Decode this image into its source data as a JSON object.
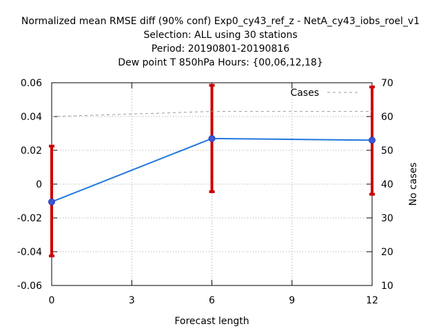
{
  "chart_data": {
    "type": "line",
    "title_lines": [
      "Normalized mean RMSE diff (90% conf) Exp0_cy43_ref_z - NetA_cy43_iobs_roel_v1",
      "Selection: ALL using    30 stations",
      "Period: 20190801-20190816",
      "Dew point T 850hPa   Hours: {00,06,12,18}"
    ],
    "xlabel": "Forecast length",
    "ylabel": "",
    "y2label": "No cases",
    "x_ticks": [
      "0",
      "3",
      "6",
      "9",
      "12"
    ],
    "y_ticks": [
      "-0.06",
      "-0.04",
      "-0.02",
      "0",
      "0.02",
      "0.04",
      "0.06"
    ],
    "y2_ticks": [
      "10",
      "20",
      "30",
      "40",
      "50",
      "60",
      "70"
    ],
    "xlim": [
      0,
      12
    ],
    "ylim": [
      -0.06,
      0.06
    ],
    "y2lim": [
      10,
      70
    ],
    "grid": true,
    "legend_position": "top-right",
    "series": [
      {
        "name": "",
        "axis": "left",
        "color": "#1f77dd",
        "style": "solid",
        "x": [
          0,
          6,
          12
        ],
        "y": [
          -0.0105,
          0.027,
          0.026
        ],
        "err_low": [
          -0.0425,
          -0.0045,
          -0.006
        ],
        "err_high": [
          0.0225,
          0.0585,
          0.0575
        ]
      },
      {
        "name": "Cases",
        "axis": "right",
        "color": "#999999",
        "style": "dashed",
        "x": [
          0,
          6,
          12
        ],
        "y": [
          60,
          61.5,
          61.5
        ]
      }
    ],
    "errorbar_color": "#cc0000"
  }
}
